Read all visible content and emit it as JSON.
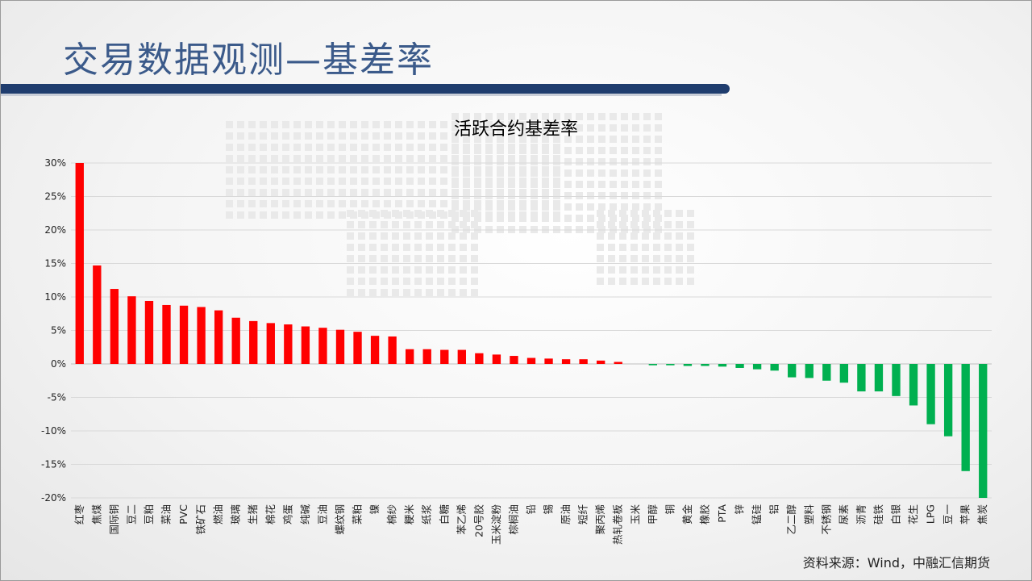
{
  "slide": {
    "title": "交易数据观测—基差率",
    "source": "资料来源：Wind，中融汇信期货"
  },
  "colors": {
    "positive": "#ff0000",
    "negative": "#00b050",
    "header_bar": "#1f3d6e",
    "title": "#3b5a8a"
  },
  "chart_data": {
    "type": "bar",
    "title": "活跃合约基差率",
    "xlabel": "",
    "ylabel": "",
    "ylim": [
      -0.2,
      0.3
    ],
    "yticks": [
      0.3,
      0.25,
      0.2,
      0.15,
      0.1,
      0.05,
      0.0,
      -0.05,
      -0.1,
      -0.15,
      -0.2
    ],
    "ytick_labels": [
      "30%",
      "25%",
      "20%",
      "15%",
      "10%",
      "5%",
      "0%",
      "-5%",
      "-10%",
      "-15%",
      "-20%"
    ],
    "grid": true,
    "categories": [
      "红枣",
      "焦煤",
      "国际铜",
      "豆二",
      "豆粕",
      "菜油",
      "PVC",
      "铁矿石",
      "燃油",
      "玻璃",
      "生猪",
      "棉花",
      "鸡蛋",
      "纯碱",
      "豆油",
      "螺纹钢",
      "菜粕",
      "镍",
      "棉纱",
      "粳米",
      "纸浆",
      "白糖",
      "苯乙烯",
      "20号胶",
      "玉米淀粉",
      "棕榈油",
      "铅",
      "锡",
      "原油",
      "短纤",
      "聚丙烯",
      "热轧卷板",
      "玉米",
      "甲醇",
      "铜",
      "黄金",
      "橡胶",
      "PTA",
      "锌",
      "锰硅",
      "铝",
      "乙二醇",
      "塑料",
      "不锈钢",
      "尿素",
      "沥青",
      "硅铁",
      "白银",
      "花生",
      "LPG",
      "豆一",
      "苹果",
      "焦炭"
    ],
    "values": [
      0.3,
      0.147,
      0.112,
      0.101,
      0.094,
      0.088,
      0.087,
      0.085,
      0.08,
      0.069,
      0.064,
      0.061,
      0.059,
      0.056,
      0.054,
      0.051,
      0.048,
      0.042,
      0.041,
      0.022,
      0.022,
      0.021,
      0.021,
      0.016,
      0.014,
      0.012,
      0.009,
      0.008,
      0.007,
      0.007,
      0.005,
      0.003,
      0.0,
      -0.002,
      -0.002,
      -0.003,
      -0.003,
      -0.004,
      -0.006,
      -0.008,
      -0.01,
      -0.02,
      -0.021,
      -0.025,
      -0.028,
      -0.041,
      -0.041,
      -0.048,
      -0.062,
      -0.09,
      -0.108,
      -0.16,
      -0.2
    ]
  }
}
